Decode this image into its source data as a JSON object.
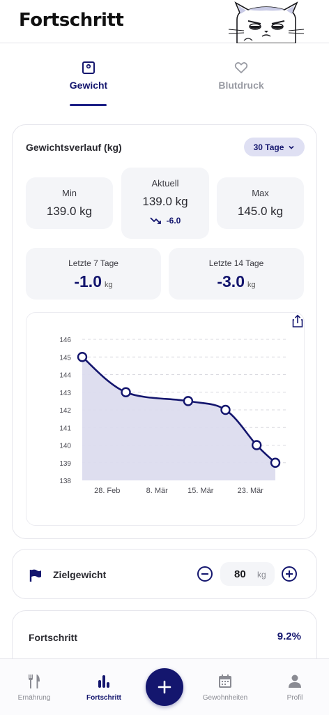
{
  "header": {
    "title": "Fortschritt",
    "mascot": "grumpy-cat-illustration"
  },
  "tabs": [
    {
      "label": "Gewicht",
      "icon": "scale-icon",
      "active": true
    },
    {
      "label": "Blutdruck",
      "icon": "heart-icon",
      "active": false
    }
  ],
  "weight_card": {
    "title": "Gewichtsverlauf (kg)",
    "range": "30 Tage",
    "stats": {
      "min": {
        "label": "Min",
        "value": "139.0 kg"
      },
      "current": {
        "label": "Aktuell",
        "value": "139.0 kg",
        "delta": "-6.0"
      },
      "max": {
        "label": "Max",
        "value": "145.0 kg"
      }
    },
    "periods": [
      {
        "label": "Letzte 7 Tage",
        "value": "-1.0",
        "unit": "kg"
      },
      {
        "label": "Letzte 14 Tage",
        "value": "-3.0",
        "unit": "kg"
      }
    ]
  },
  "chart_data": {
    "type": "area",
    "title": "",
    "xlabel": "",
    "ylabel": "",
    "ylim": [
      138,
      146
    ],
    "yticks": [
      146,
      145,
      144,
      143,
      142,
      141,
      140,
      139,
      138
    ],
    "xtick_labels": [
      "28. Feb",
      "8. Mär",
      "15. Mär",
      "23. Mär"
    ],
    "xtick_dates": [
      "2025-02-28",
      "2025-03-08",
      "2025-03-15",
      "2025-03-23"
    ],
    "grid": true,
    "series": [
      {
        "points": [
          {
            "date": "2025-02-24",
            "y": 145.0
          },
          {
            "date": "2025-03-03",
            "y": 143.0
          },
          {
            "date": "2025-03-13",
            "y": 142.5
          },
          {
            "date": "2025-03-19",
            "y": 142.0
          },
          {
            "date": "2025-03-24",
            "y": 140.0
          },
          {
            "date": "2025-03-27",
            "y": 139.0
          }
        ]
      }
    ],
    "colors": {
      "line": "#14166e",
      "fill": "#dcdcee",
      "grid": "#d9d9df"
    }
  },
  "goal": {
    "label": "Zielgewicht",
    "value": "80",
    "unit": "kg"
  },
  "progress": {
    "label": "Fortschritt",
    "value": "9.2%"
  },
  "nav": [
    {
      "label": "Ernährung",
      "icon": "fork-knife-icon",
      "active": false
    },
    {
      "label": "Fortschritt",
      "icon": "bar-chart-icon",
      "active": true
    },
    {
      "label": "Gewohnheiten",
      "icon": "calendar-icon",
      "active": false
    },
    {
      "label": "Profil",
      "icon": "person-icon",
      "active": false
    }
  ],
  "fab": {
    "icon": "plus-icon"
  }
}
